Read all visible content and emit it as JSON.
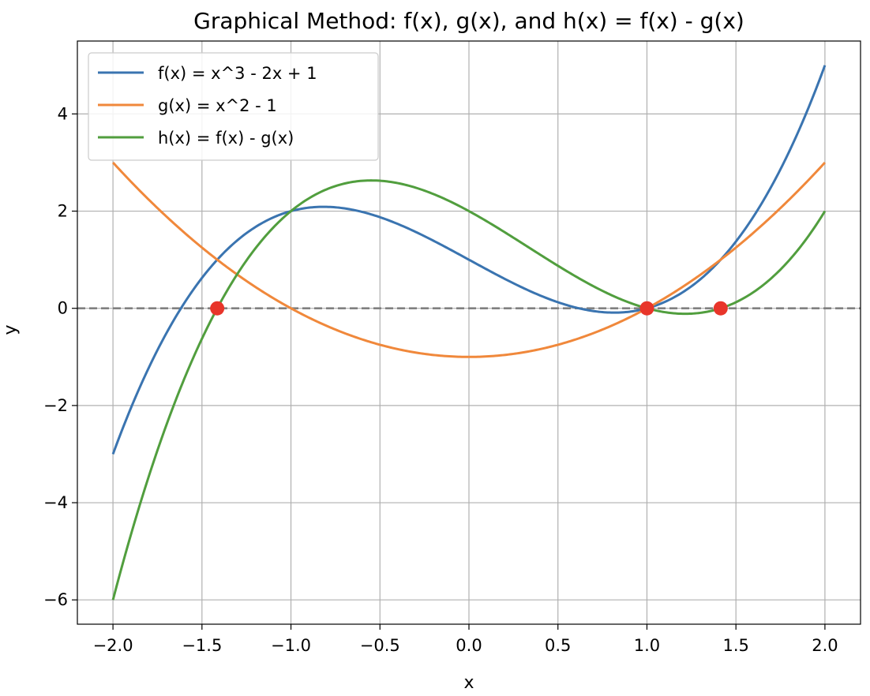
{
  "chart_data": {
    "type": "line",
    "title": "Graphical Method: f(x), g(x), and h(x) = f(x) - g(x)",
    "xlabel": "x",
    "ylabel": "y",
    "xlim": [
      -2.2,
      2.2
    ],
    "ylim": [
      -6.5,
      5.5
    ],
    "grid": true,
    "legend_position": "top-left",
    "x_ticks": [
      -2.0,
      -1.5,
      -1.0,
      -0.5,
      0.0,
      0.5,
      1.0,
      1.5,
      2.0
    ],
    "x_tick_labels": [
      "−2.0",
      "−1.5",
      "−1.0",
      "−0.5",
      "0.0",
      "0.5",
      "1.0",
      "1.5",
      "2.0"
    ],
    "y_ticks": [
      -6,
      -4,
      -2,
      0,
      2,
      4
    ],
    "y_tick_labels": [
      "−6",
      "−4",
      "−2",
      "0",
      "2",
      "4"
    ],
    "x_range": [
      -2.0,
      2.0
    ],
    "series": [
      {
        "name": "f(x) = x^3 - 2x + 1",
        "coeffs": [
          1,
          0,
          -2,
          1
        ],
        "color": "#3a74b0"
      },
      {
        "name": "g(x) = x^2 - 1",
        "coeffs": [
          0,
          1,
          0,
          -1
        ],
        "color": "#f0883b"
      },
      {
        "name": "h(x) = f(x) - g(x)",
        "coeffs": [
          1,
          -1,
          -2,
          2
        ],
        "color": "#519e3e"
      }
    ],
    "reference_line": {
      "y": 0,
      "style": "dashed",
      "color": "#808080"
    },
    "roots": [
      {
        "x": -1.4142,
        "y": 0
      },
      {
        "x": 1.0,
        "y": 0
      },
      {
        "x": 1.4142,
        "y": 0
      }
    ],
    "root_color": "#e8352a"
  }
}
